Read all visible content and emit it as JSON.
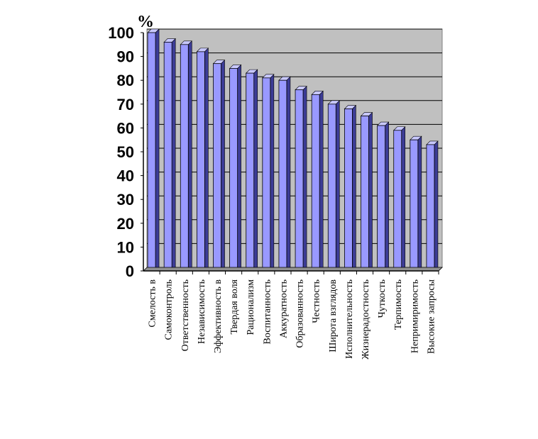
{
  "chart_data": {
    "type": "bar",
    "title": "",
    "xlabel": "",
    "ylabel": "%",
    "ylim": [
      0,
      100
    ],
    "yticks": [
      0,
      10,
      20,
      30,
      40,
      50,
      60,
      70,
      80,
      90,
      100
    ],
    "grid": true,
    "legend": "none",
    "colors": {
      "bar_front": "#9999ff",
      "bar_side": "#3c3c96",
      "bar_top": "#c8c8ff",
      "plot_bg": "#c0c0c0",
      "grid": "#000000"
    },
    "categories": [
      "Смелость в",
      "Самоконтроль",
      "Ответственность",
      "Независимость",
      "Эффективность в",
      "Твердая воля",
      "Рационализм",
      "Воспитанность",
      "Аккуратность",
      "Образованность",
      "Честность",
      "Широта взглядов",
      "Исполнительность",
      "Жизнерадостность",
      "Чуткость",
      "Терпимость",
      "Непримиримость",
      "Высокие запросы"
    ],
    "values": [
      100,
      96,
      95,
      92,
      87,
      85,
      83,
      81,
      80,
      76,
      74,
      70,
      68,
      65,
      61,
      59,
      55,
      53
    ]
  }
}
